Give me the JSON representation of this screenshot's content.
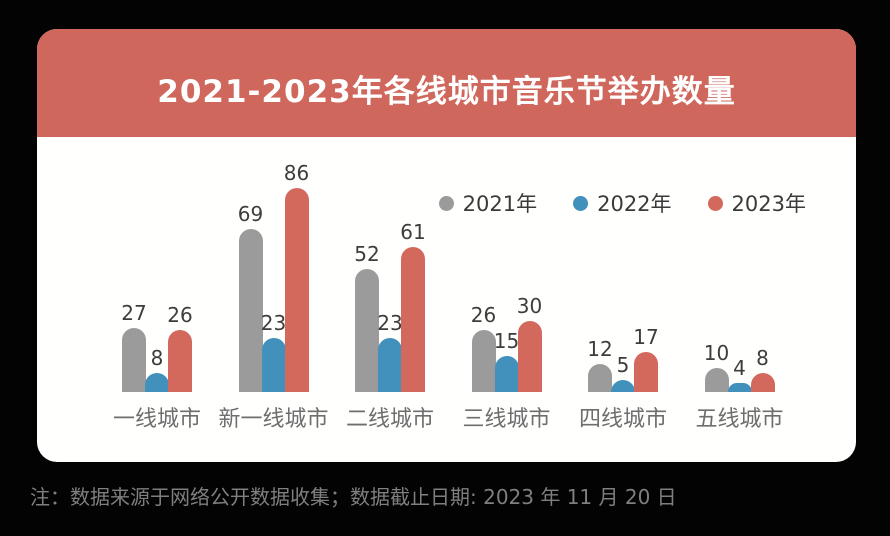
{
  "page": {
    "background_color": "#030303",
    "card_color": "#fffffe"
  },
  "chart_data": {
    "type": "bar",
    "title": "2021-2023年各线城市音乐节举办数量",
    "title_color": "#ffffff",
    "banner_color": "#cf675d",
    "categories": [
      "一线城市",
      "新一线城市",
      "二线城市",
      "三线城市",
      "四线城市",
      "五线城市"
    ],
    "series": [
      {
        "name": "2021年",
        "color": "#9b9b9b",
        "values": [
          27,
          69,
          52,
          26,
          12,
          10
        ]
      },
      {
        "name": "2022年",
        "color": "#4191bc",
        "values": [
          8,
          23,
          23,
          15,
          5,
          4
        ]
      },
      {
        "name": "2023年",
        "color": "#d3685d",
        "values": [
          26,
          86,
          61,
          30,
          17,
          8
        ]
      }
    ],
    "ylim": [
      0,
      90
    ],
    "grid": false,
    "legend_position": "top-right",
    "value_labels": true,
    "value_label_color": "#3d3d3d",
    "category_label_color": "#6e6e6e"
  },
  "note": {
    "text": "注：数据来源于网络公开数据收集；数据截止日期: 2023 年 11 月 20 日"
  }
}
